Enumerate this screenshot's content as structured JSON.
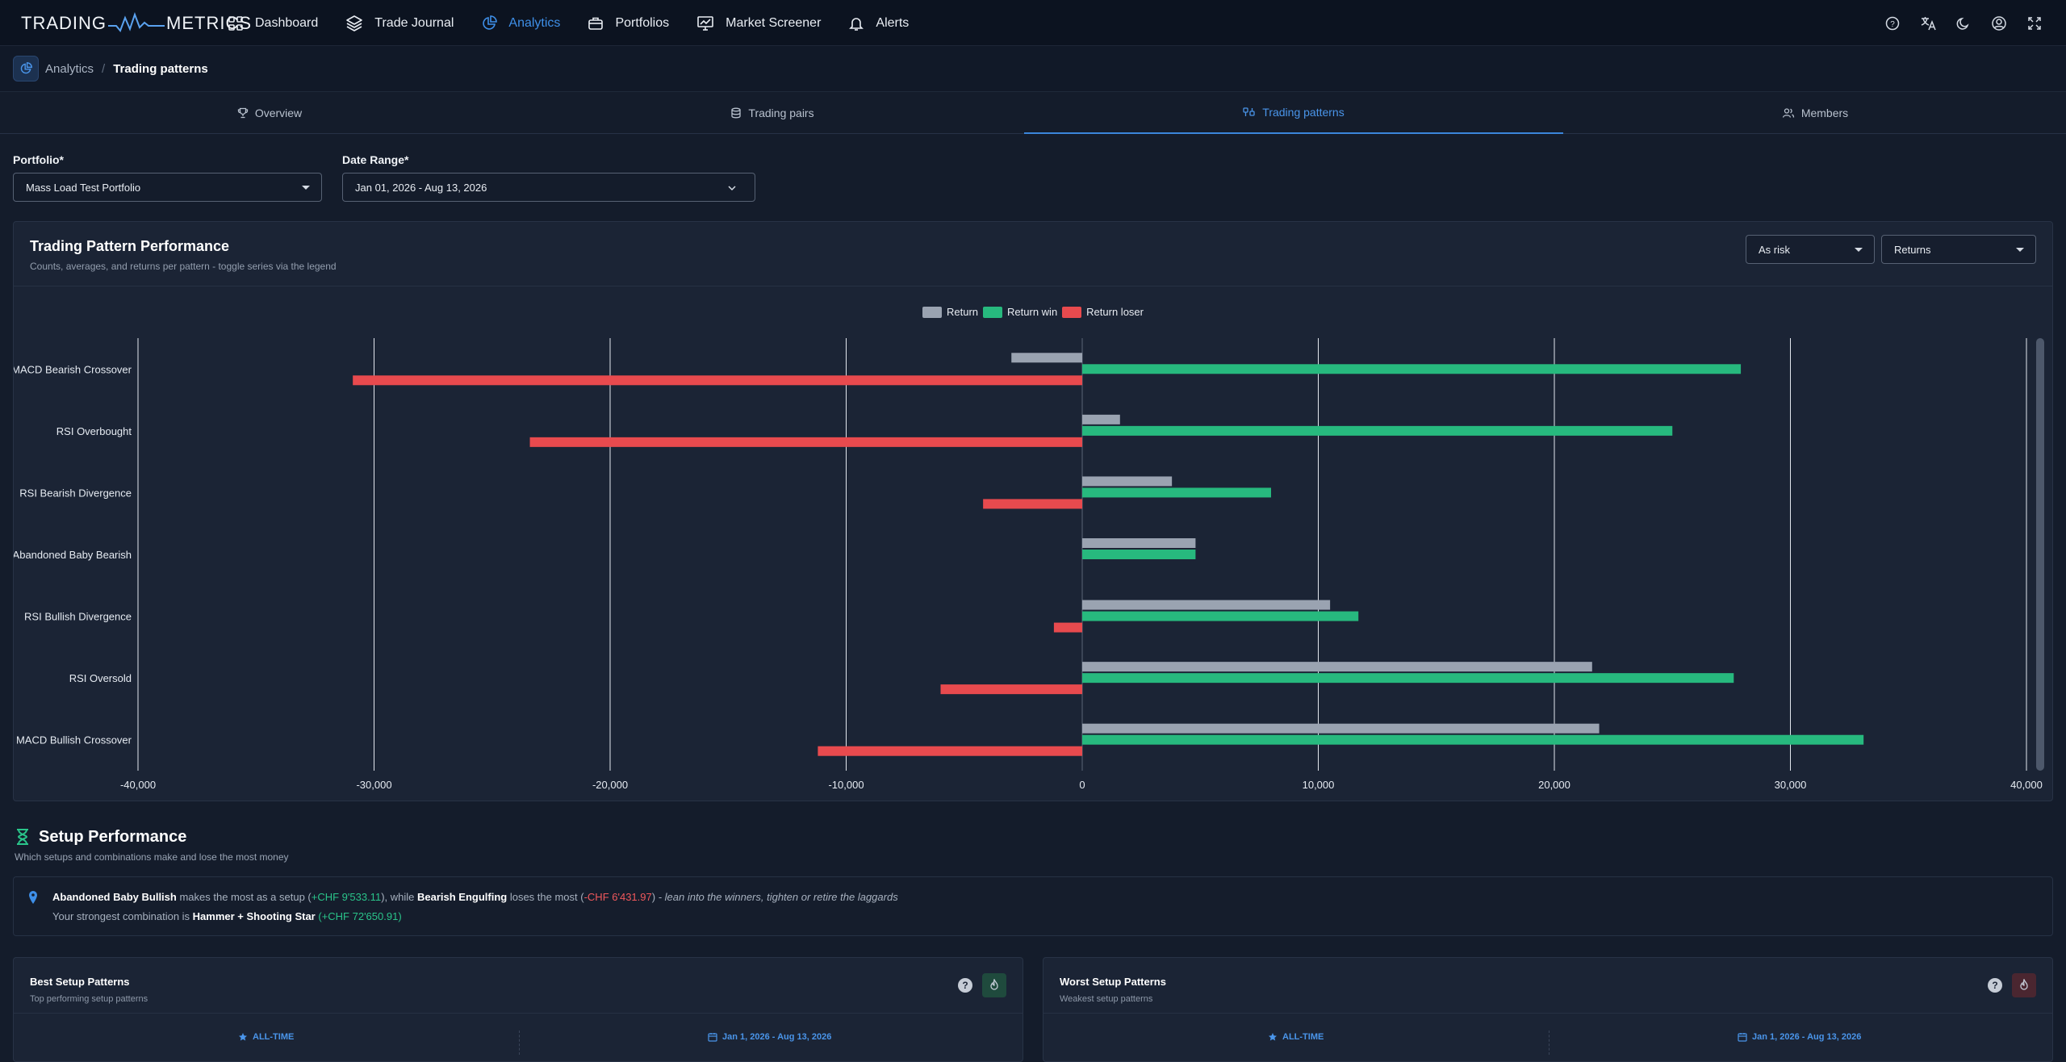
{
  "app": {
    "logo_left": "TRADING",
    "logo_right": "METRICS"
  },
  "nav": {
    "items": [
      {
        "label": "Dashboard",
        "icon": "grid-icon",
        "active": false
      },
      {
        "label": "Trade Journal",
        "icon": "layers-icon",
        "active": false
      },
      {
        "label": "Analytics",
        "icon": "pie-chart-icon",
        "active": true
      },
      {
        "label": "Portfolios",
        "icon": "briefcase-icon",
        "active": false
      },
      {
        "label": "Market Screener",
        "icon": "monitor-chart-icon",
        "active": false
      },
      {
        "label": "Alerts",
        "icon": "bell-icon",
        "active": false
      }
    ],
    "right_icons": [
      "help-icon",
      "translate-icon",
      "moon-icon",
      "user-circle-icon",
      "fullscreen-icon"
    ]
  },
  "breadcrumb": {
    "parent": "Analytics",
    "separator": "/",
    "current": "Trading patterns"
  },
  "tabs": [
    {
      "label": "Overview",
      "icon": "trophy-icon",
      "active": false
    },
    {
      "label": "Trading pairs",
      "icon": "database-icon",
      "active": false
    },
    {
      "label": "Trading patterns",
      "icon": "patterns-icon",
      "active": true
    },
    {
      "label": "Members",
      "icon": "users-icon",
      "active": false
    }
  ],
  "filters": {
    "portfolio_label": "Portfolio*",
    "portfolio_value": "Mass Load Test Portfolio",
    "date_label": "Date Range*",
    "date_value": "Jan 01, 2026 - Aug 13, 2026"
  },
  "performance_panel": {
    "title": "Trading Pattern Performance",
    "subtitle": "Counts, averages, and returns per pattern - toggle series via the legend",
    "mode_select": "As risk",
    "metric_select": "Returns"
  },
  "chart_data": {
    "type": "bar",
    "orientation": "horizontal",
    "categories": [
      "MACD Bearish Crossover",
      "RSI Overbought",
      "RSI Bearish Divergence",
      "Abandoned Baby Bearish",
      "RSI Bullish Divergence",
      "RSI Oversold",
      "MACD Bullish Crossover"
    ],
    "series": [
      {
        "name": "Return",
        "color": "#9aa3b1",
        "values": [
          -3000,
          1600,
          3800,
          4800,
          10500,
          21600,
          21900
        ]
      },
      {
        "name": "Return win",
        "color": "#27b97e",
        "values": [
          27900,
          25000,
          8000,
          4800,
          11700,
          27600,
          33100
        ]
      },
      {
        "name": "Return loser",
        "color": "#e84a4e",
        "values": [
          -30900,
          -23400,
          -4200,
          0,
          -1200,
          -6000,
          -11200
        ]
      }
    ],
    "xlim": [
      -40000,
      40000
    ],
    "ticks": [
      "-40,000",
      "-30,000",
      "-20,000",
      "-10,000",
      "0",
      "10,000",
      "20,000",
      "30,000",
      "40,000"
    ],
    "tick_values": [
      -40000,
      -30000,
      -20000,
      -10000,
      0,
      10000,
      20000,
      30000,
      40000
    ],
    "grid": true,
    "legend_position": "top-center"
  },
  "setup_performance": {
    "title": "Setup Performance",
    "subtitle": "Which setups and combinations make and lose the most money",
    "best_setup": "Abandoned Baby Bullish",
    "t1": " makes the most as a setup (",
    "best_amount": "+CHF 9'533.11",
    "t2": "), while ",
    "worst_setup": "Bearish Engulfing",
    "t3": " loses the most (",
    "worst_amount": "-CHF 6'431.97",
    "t4": ")",
    "t5": " - lean into the winners, tighten or retire the laggards",
    "combo_prefix": "Your strongest combination is ",
    "combo_name": "Hammer + Shooting Star",
    "combo_open": " (",
    "combo_amount": "+CHF 72'650.91",
    "combo_close": ")"
  },
  "cards": {
    "best": {
      "title": "Best Setup Patterns",
      "subtitle": "Top performing setup patterns",
      "help": "?",
      "seg_all": "ALL-TIME",
      "seg_range": "Jan 1, 2026 - Aug 13, 2026"
    },
    "worst": {
      "title": "Worst Setup Patterns",
      "subtitle": "Weakest setup patterns",
      "help": "?",
      "seg_all": "ALL-TIME",
      "seg_range": "Jan 1, 2026 - Aug 13, 2026"
    }
  }
}
